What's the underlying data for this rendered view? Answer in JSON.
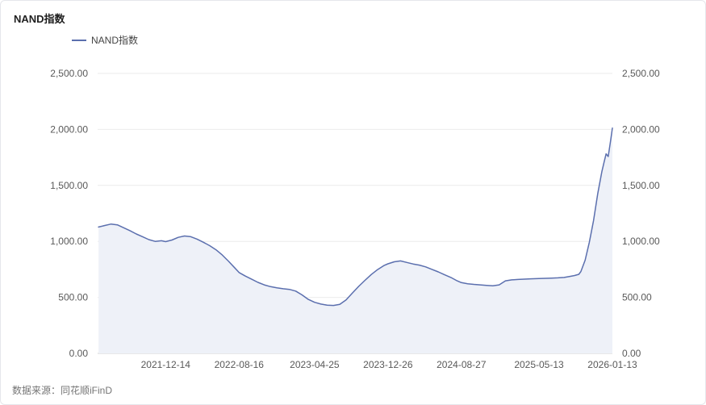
{
  "header": {
    "title": "NAND指数"
  },
  "legend": {
    "label": "NAND指数"
  },
  "footer": {
    "source_label": "数据来源：",
    "source_name": "同花顺iFinD"
  },
  "colors": {
    "line": "#5b6fae",
    "fill": "#eef1f8",
    "grid": "#ebebeb",
    "axis_line": "#d0d0d0",
    "axis_text": "#595959"
  },
  "chart_data": {
    "type": "area",
    "title": "NAND指数",
    "legend": [
      "NAND指数"
    ],
    "ylim": [
      0,
      2500
    ],
    "x_range": [
      "2021-05-01",
      "2026-01-13"
    ],
    "grid": "horizontal",
    "legend_position": "top-left",
    "yticks": [
      {
        "v": 0,
        "label": "0.00"
      },
      {
        "v": 500,
        "label": "500.00"
      },
      {
        "v": 1000,
        "label": "1,000.00"
      },
      {
        "v": 1500,
        "label": "1,500.00"
      },
      {
        "v": 2000,
        "label": "2,000.00"
      },
      {
        "v": 2500,
        "label": "2,500.00"
      }
    ],
    "xticks": [
      {
        "v": "2021-12-14",
        "label": "2021-12-14"
      },
      {
        "v": "2022-08-16",
        "label": "2022-08-16"
      },
      {
        "v": "2023-04-25",
        "label": "2023-04-25"
      },
      {
        "v": "2023-12-26",
        "label": "2023-12-26"
      },
      {
        "v": "2024-08-27",
        "label": "2024-08-27"
      },
      {
        "v": "2025-05-13",
        "label": "2025-05-13"
      },
      {
        "v": "2026-01-13",
        "label": "2026-01-13"
      }
    ],
    "x": [
      "2021-05-04",
      "2021-05-25",
      "2021-06-15",
      "2021-07-06",
      "2021-07-27",
      "2021-08-17",
      "2021-09-07",
      "2021-09-28",
      "2021-10-19",
      "2021-11-09",
      "2021-11-30",
      "2021-12-14",
      "2022-01-04",
      "2022-01-25",
      "2022-02-15",
      "2022-03-08",
      "2022-03-29",
      "2022-04-19",
      "2022-05-10",
      "2022-05-31",
      "2022-06-21",
      "2022-07-12",
      "2022-08-02",
      "2022-08-16",
      "2022-09-06",
      "2022-09-27",
      "2022-10-18",
      "2022-11-08",
      "2022-11-29",
      "2022-12-20",
      "2023-01-10",
      "2023-01-31",
      "2023-02-21",
      "2023-03-14",
      "2023-04-04",
      "2023-04-25",
      "2023-05-16",
      "2023-06-06",
      "2023-06-27",
      "2023-07-18",
      "2023-08-08",
      "2023-08-29",
      "2023-09-19",
      "2023-10-10",
      "2023-10-31",
      "2023-11-21",
      "2023-12-12",
      "2023-12-26",
      "2024-01-16",
      "2024-02-06",
      "2024-02-27",
      "2024-03-19",
      "2024-04-09",
      "2024-04-30",
      "2024-05-21",
      "2024-06-11",
      "2024-07-02",
      "2024-07-23",
      "2024-08-13",
      "2024-08-27",
      "2024-09-17",
      "2024-10-08",
      "2024-10-29",
      "2024-11-19",
      "2024-12-10",
      "2024-12-31",
      "2025-01-21",
      "2025-02-11",
      "2025-03-04",
      "2025-03-25",
      "2025-04-15",
      "2025-05-13",
      "2025-06-03",
      "2025-06-24",
      "2025-07-15",
      "2025-08-05",
      "2025-08-26",
      "2025-09-09",
      "2025-09-23",
      "2025-09-30",
      "2025-10-14",
      "2025-10-28",
      "2025-11-11",
      "2025-11-25",
      "2025-12-09",
      "2025-12-16",
      "2025-12-23",
      "2025-12-30",
      "2026-01-06",
      "2026-01-13"
    ],
    "values": [
      1128,
      1142,
      1155,
      1148,
      1122,
      1096,
      1066,
      1042,
      1016,
      1000,
      1006,
      998,
      1012,
      1036,
      1048,
      1042,
      1020,
      992,
      962,
      925,
      878,
      822,
      762,
      722,
      690,
      662,
      634,
      612,
      596,
      586,
      577,
      571,
      556,
      522,
      482,
      456,
      440,
      430,
      428,
      438,
      478,
      538,
      598,
      652,
      704,
      748,
      784,
      800,
      818,
      826,
      812,
      798,
      788,
      772,
      750,
      728,
      702,
      678,
      648,
      632,
      622,
      616,
      612,
      607,
      603,
      612,
      648,
      656,
      660,
      663,
      666,
      668,
      670,
      672,
      674,
      678,
      688,
      695,
      706,
      732,
      832,
      992,
      1185,
      1425,
      1625,
      1705,
      1782,
      1758,
      1882,
      2012
    ]
  }
}
